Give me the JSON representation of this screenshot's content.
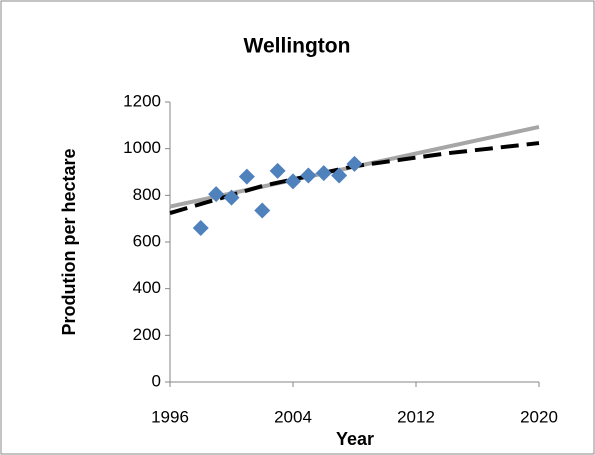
{
  "chart_data": {
    "type": "scatter",
    "title": "Wellington",
    "x_label": "Year",
    "y_label": "Prodution per hectare",
    "xlim": [
      1996,
      2020
    ],
    "xticks": [
      1996,
      2004,
      2012,
      2020
    ],
    "ylim": [
      0,
      1200
    ],
    "yticks": [
      0,
      200,
      400,
      600,
      800,
      1000,
      1200
    ],
    "grid": false,
    "series": [
      {
        "type": "scatter",
        "color": "#4f81bd",
        "x": [
          1998,
          1999,
          2000,
          2001,
          2002,
          2003,
          2004,
          2005,
          2006,
          2007,
          2008
        ],
        "values": [
          660,
          805,
          790,
          880,
          735,
          905,
          860,
          885,
          895,
          885,
          935
        ]
      },
      {
        "type": "line",
        "color": "#a6a6a6",
        "dashed": false,
        "x": [
          1996,
          2020
        ],
        "values": [
          752,
          1093
        ]
      },
      {
        "type": "line",
        "color": "#000000",
        "dashed": true,
        "x": [
          1996,
          2002,
          2008,
          2014,
          2020
        ],
        "values": [
          724,
          840,
          925,
          980,
          1024
        ]
      }
    ]
  }
}
